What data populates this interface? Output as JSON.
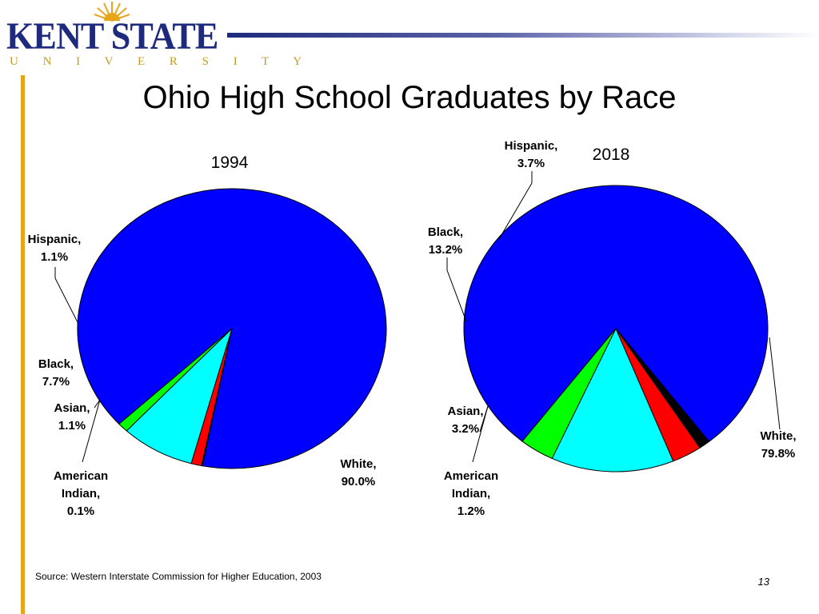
{
  "title": "Ohio High School Graduates by Race",
  "logo": {
    "name": "KENT STATE",
    "sub": "U N I V E R S I T Y"
  },
  "chart_data": [
    {
      "type": "pie",
      "title": "1994",
      "slices": [
        {
          "category": "White",
          "value": 90.0,
          "label": [
            "White,",
            "90.0%"
          ],
          "color": "#0000ff"
        },
        {
          "category": "American Indian",
          "value": 0.1,
          "label": [
            "American",
            "Indian,",
            "0.1%"
          ],
          "color": "#000000"
        },
        {
          "category": "Asian",
          "value": 1.1,
          "label": [
            "Asian,",
            "1.1%"
          ],
          "color": "#ff0000"
        },
        {
          "category": "Black",
          "value": 7.7,
          "label": [
            "Black,",
            "7.7%"
          ],
          "color": "#00ffff"
        },
        {
          "category": "Hispanic",
          "value": 1.1,
          "label": [
            "Hispanic,",
            "1.1%"
          ],
          "color": "#00ff00"
        }
      ]
    },
    {
      "type": "pie",
      "title": "2018",
      "slices": [
        {
          "category": "White",
          "value": 79.8,
          "label": [
            "White,",
            "79.8%"
          ],
          "color": "#0000ff"
        },
        {
          "category": "American Indian",
          "value": 1.2,
          "label": [
            "American",
            "Indian,",
            "1.2%"
          ],
          "color": "#000000"
        },
        {
          "category": "Asian",
          "value": 3.2,
          "label": [
            "Asian,",
            "3.2%"
          ],
          "color": "#ff0000"
        },
        {
          "category": "Black",
          "value": 13.2,
          "label": [
            "Black,",
            "13.2%"
          ],
          "color": "#00ffff"
        },
        {
          "category": "Hispanic",
          "value": 3.7,
          "label": [
            "Hispanic,",
            "3.7%"
          ],
          "color": "#00ff00"
        }
      ]
    }
  ],
  "source": "Source: Western Interstate Commission for Higher Education, 2003",
  "page_number": "13"
}
